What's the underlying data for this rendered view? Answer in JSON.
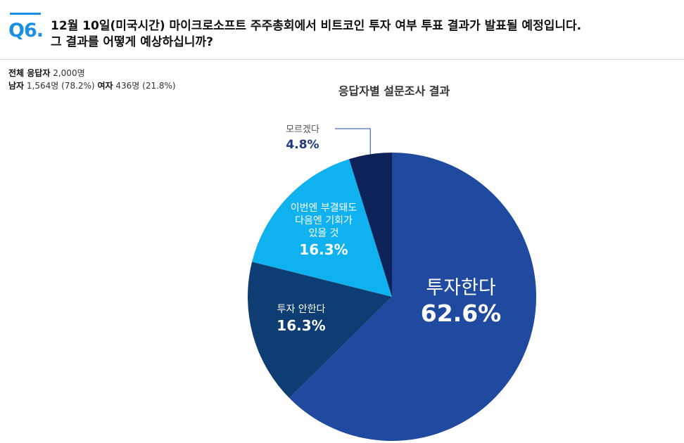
{
  "question": {
    "number": "Q6.",
    "line1": "12월 10일(미국시간) 마이크로소프트 주주총회에서 비트코인 투자 여부 투표 결과가 발표될 예정입니다.",
    "line2": "그 결과를 어떻게 예상하십니까?"
  },
  "respondents": {
    "total_label": "전체 응답자",
    "total_value": "2,000명",
    "male_label": "남자",
    "male_value": "1,564명 (78.2%)",
    "female_label": "여자",
    "female_value": "436명 (21.8%)"
  },
  "colors": {
    "accent": "#1a8fe3",
    "slice_invest": "#1f4aa0",
    "slice_not_invest": "#0e3d73",
    "slice_next_chance": "#0fb2ef",
    "slice_unknown": "#0c2258",
    "leader_line": "#1f4aa0"
  },
  "chart_data": {
    "type": "pie",
    "title": "응답자별 설문조사 결과",
    "slices": [
      {
        "label": "투자한다",
        "value": 62.6,
        "value_label": "62.6%",
        "color": "#1f4aa0"
      },
      {
        "label": "투자 안한다",
        "value": 16.3,
        "value_label": "16.3%",
        "color": "#0e3d73"
      },
      {
        "label": "이번엔 부결돼도\n다음엔 기회가\n있을 것",
        "value": 16.3,
        "value_label": "16.3%",
        "color": "#0fb2ef"
      },
      {
        "label": "모르겠다",
        "value": 4.8,
        "value_label": "4.8%",
        "color": "#0c2258"
      }
    ]
  }
}
